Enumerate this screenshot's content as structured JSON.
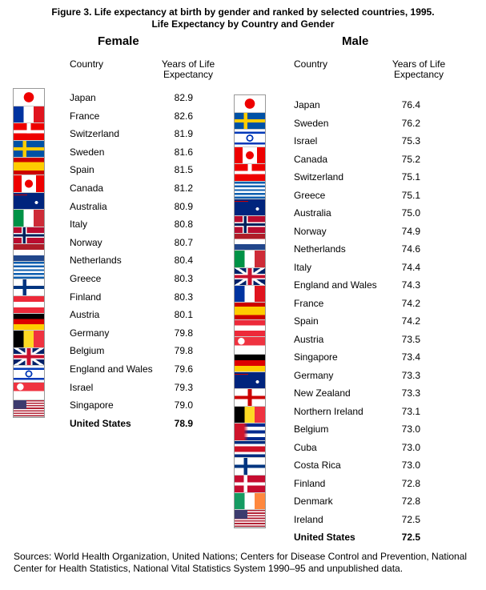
{
  "title": "Figure 3.  Life expectancy at birth by gender and ranked by selected countries, 1995.",
  "subtitle": "Life Expectancy by Country and Gender",
  "female": {
    "heading": "Female",
    "columns": [
      "Country",
      "Years of Life Expectancy"
    ],
    "rows": [
      [
        "Japan",
        "82.9"
      ],
      [
        "France",
        "82.6"
      ],
      [
        "Switzerland",
        "81.9"
      ],
      [
        "Sweden",
        "81.6"
      ],
      [
        "Spain",
        "81.5"
      ],
      [
        "Canada",
        "81.2"
      ],
      [
        "Australia",
        "80.9"
      ],
      [
        "Italy",
        "80.8"
      ],
      [
        "Norway",
        "80.7"
      ],
      [
        "Netherlands",
        "80.4"
      ],
      [
        "Greece",
        "80.3"
      ],
      [
        "Finland",
        "80.3"
      ],
      [
        "Austria",
        "80.1"
      ],
      [
        "Germany",
        "79.8"
      ],
      [
        "Belgium",
        "79.8"
      ],
      [
        "England and Wales",
        "79.6"
      ],
      [
        "Israel",
        "79.3"
      ],
      [
        "Singapore",
        "79.0"
      ],
      [
        "United States",
        "78.9"
      ]
    ]
  },
  "male": {
    "heading": "Male",
    "columns": [
      "Country",
      "Years of Life Expectancy"
    ],
    "rows": [
      [
        "Japan",
        "76.4"
      ],
      [
        "Sweden",
        "76.2"
      ],
      [
        "Israel",
        "75.3"
      ],
      [
        "Canada",
        "75.2"
      ],
      [
        "Switzerland",
        "75.1"
      ],
      [
        "Greece",
        "75.1"
      ],
      [
        "Australia",
        "75.0"
      ],
      [
        "Norway",
        "74.9"
      ],
      [
        "Netherlands",
        "74.6"
      ],
      [
        "Italy",
        "74.4"
      ],
      [
        "England and Wales",
        "74.3"
      ],
      [
        "France",
        "74.2"
      ],
      [
        "Spain",
        "74.2"
      ],
      [
        "Austria",
        "73.5"
      ],
      [
        "Singapore",
        "73.4"
      ],
      [
        "Germany",
        "73.3"
      ],
      [
        "New Zealand",
        "73.3"
      ],
      [
        "Northern Ireland",
        "73.1"
      ],
      [
        "Belgium",
        "73.0"
      ],
      [
        "Cuba",
        "73.0"
      ],
      [
        "Costa Rica",
        "73.0"
      ],
      [
        "Finland",
        "72.8"
      ],
      [
        "Denmark",
        "72.8"
      ],
      [
        "Ireland",
        "72.5"
      ],
      [
        "United States",
        "72.5"
      ]
    ]
  },
  "sources": "Sources: World Health Organization, United Nations; Centers for Disease Control and Prevention, National Center for Health Statistics, National Vital Statistics System 1990–95 and unpublished data."
}
